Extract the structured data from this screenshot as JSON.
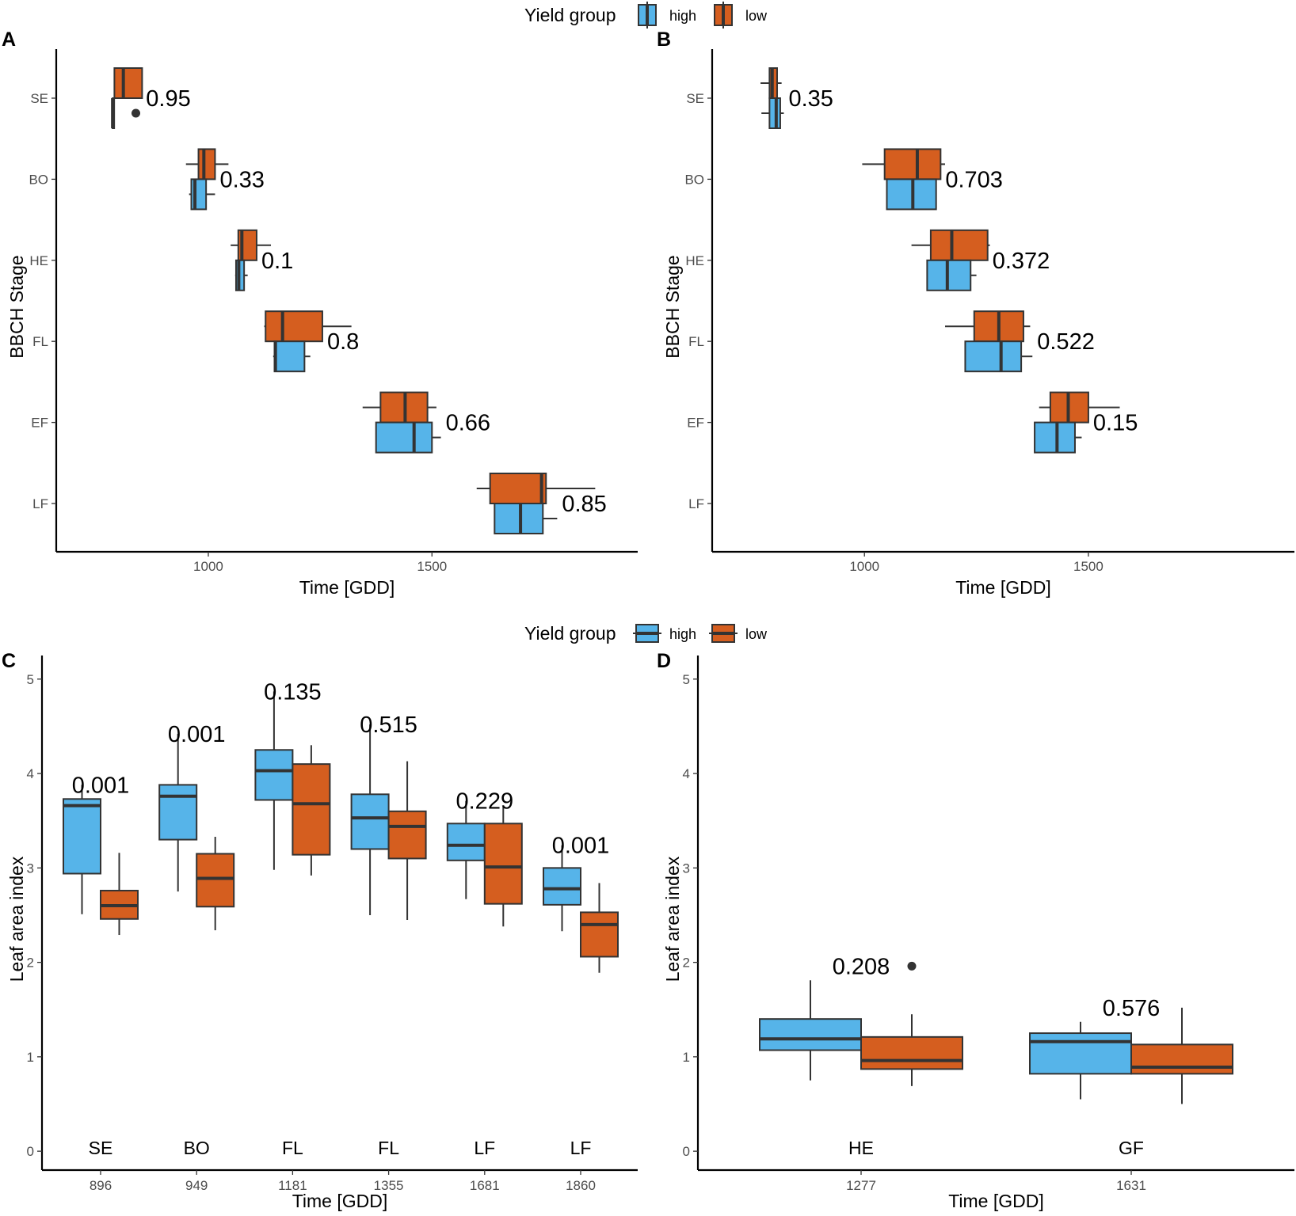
{
  "colors": {
    "high": "#56B4E9",
    "low": "#D55E1F",
    "outline": "#333333"
  },
  "legend": {
    "title": "Yield group",
    "items": [
      "high",
      "low"
    ]
  },
  "chart_data": [
    {
      "panel": "A",
      "type": "boxplot",
      "orientation": "horizontal",
      "xlabel": "Time [GDD]",
      "ylabel": "BBCH Stage",
      "xlim": [
        660,
        1960
      ],
      "xticks": [
        1000,
        1500
      ],
      "categories": [
        "SE",
        "BO",
        "HE",
        "FL",
        "EF",
        "LF"
      ],
      "pvalues": [
        "0.95",
        "0.33",
        "0.1",
        "0.8",
        "0.66",
        "0.85"
      ],
      "boxes": {
        "high": [
          {
            "min": 786,
            "q1": 786,
            "median": 786,
            "q3": 786,
            "max": 786,
            "outliers": [
              838
            ]
          },
          {
            "min": 957,
            "q1": 962,
            "median": 970,
            "q3": 995,
            "max": 1015
          },
          {
            "min": 1060,
            "q1": 1062,
            "median": 1068,
            "q3": 1080,
            "max": 1088
          },
          {
            "min": 1145,
            "q1": 1148,
            "median": 1150,
            "q3": 1215,
            "max": 1228
          },
          {
            "min": 1375,
            "q1": 1375,
            "median": 1460,
            "q3": 1500,
            "max": 1520
          },
          {
            "min": 1640,
            "q1": 1640,
            "median": 1698,
            "q3": 1748,
            "max": 1780
          }
        ],
        "low": [
          {
            "min": 790,
            "q1": 790,
            "median": 810,
            "q3": 852,
            "max": 852
          },
          {
            "min": 950,
            "q1": 978,
            "median": 990,
            "q3": 1015,
            "max": 1045
          },
          {
            "min": 1050,
            "q1": 1067,
            "median": 1075,
            "q3": 1108,
            "max": 1140
          },
          {
            "min": 1125,
            "q1": 1128,
            "median": 1166,
            "q3": 1255,
            "max": 1320
          },
          {
            "min": 1345,
            "q1": 1385,
            "median": 1440,
            "q3": 1490,
            "max": 1510
          },
          {
            "min": 1600,
            "q1": 1630,
            "median": 1745,
            "q3": 1755,
            "max": 1865
          }
        ]
      }
    },
    {
      "panel": "B",
      "type": "boxplot",
      "orientation": "horizontal",
      "xlabel": "Time [GDD]",
      "ylabel": "BBCH Stage",
      "xlim": [
        660,
        1960
      ],
      "xticks": [
        1000,
        1500
      ],
      "categories": [
        "SE",
        "BO",
        "HE",
        "FL",
        "EF",
        "LF"
      ],
      "pvalues": [
        "0.35",
        "0.703",
        "0.372",
        "0.522",
        "0.15",
        null
      ],
      "boxes": {
        "high": [
          {
            "min": 770,
            "q1": 788,
            "median": 803,
            "q3": 812,
            "max": 820
          },
          {
            "min": 1050,
            "q1": 1050,
            "median": 1108,
            "q3": 1160,
            "max": 1160
          },
          {
            "min": 1140,
            "q1": 1140,
            "median": 1185,
            "q3": 1237,
            "max": 1250
          },
          {
            "min": 1225,
            "q1": 1225,
            "median": 1305,
            "q3": 1350,
            "max": 1375
          },
          {
            "min": 1380,
            "q1": 1380,
            "median": 1430,
            "q3": 1470,
            "max": 1485
          },
          null
        ],
        "low": [
          {
            "min": 768,
            "q1": 788,
            "median": 794,
            "q3": 805,
            "max": 815
          },
          {
            "min": 995,
            "q1": 1045,
            "median": 1118,
            "q3": 1170,
            "max": 1180
          },
          {
            "min": 1105,
            "q1": 1148,
            "median": 1195,
            "q3": 1275,
            "max": 1280
          },
          {
            "min": 1180,
            "q1": 1245,
            "median": 1300,
            "q3": 1355,
            "max": 1370
          },
          {
            "min": 1390,
            "q1": 1415,
            "median": 1455,
            "q3": 1500,
            "max": 1570
          },
          null
        ]
      }
    },
    {
      "panel": "C",
      "type": "boxplot",
      "orientation": "vertical",
      "xlabel": "Time [GDD]",
      "ylabel": "Leaf area index",
      "ylim": [
        -0.2,
        5.25
      ],
      "yticks": [
        0,
        1,
        2,
        3,
        4,
        5
      ],
      "categories": [
        "896",
        "949",
        "1181",
        "1355",
        "1681",
        "1860"
      ],
      "stages": [
        "SE",
        "BO",
        "FL",
        "FL",
        "LF",
        "LF"
      ],
      "pvalues": [
        "0.001",
        "0.001",
        "0.135",
        "0.515",
        "0.229",
        "0.001"
      ],
      "boxes": {
        "high": [
          {
            "min": 2.51,
            "q1": 2.94,
            "median": 3.66,
            "q3": 3.73,
            "max": 3.88
          },
          {
            "min": 2.75,
            "q1": 3.3,
            "median": 3.76,
            "q3": 3.88,
            "max": 4.42
          },
          {
            "min": 2.98,
            "q1": 3.72,
            "median": 4.03,
            "q3": 4.25,
            "max": 4.87
          },
          {
            "min": 2.5,
            "q1": 3.2,
            "median": 3.53,
            "q3": 3.78,
            "max": 4.52
          },
          {
            "min": 2.67,
            "q1": 3.08,
            "median": 3.24,
            "q3": 3.47,
            "max": 3.71
          },
          {
            "min": 2.33,
            "q1": 2.61,
            "median": 2.78,
            "q3": 3.0,
            "max": 3.24
          }
        ],
        "low": [
          {
            "min": 2.29,
            "q1": 2.46,
            "median": 2.6,
            "q3": 2.76,
            "max": 3.16
          },
          {
            "min": 2.34,
            "q1": 2.59,
            "median": 2.89,
            "q3": 3.15,
            "max": 3.33
          },
          {
            "min": 2.92,
            "q1": 3.14,
            "median": 3.68,
            "q3": 4.1,
            "max": 4.3
          },
          {
            "min": 2.45,
            "q1": 3.1,
            "median": 3.44,
            "q3": 3.6,
            "max": 4.13
          },
          {
            "min": 2.38,
            "q1": 2.62,
            "median": 3.01,
            "q3": 3.47,
            "max": 3.65
          },
          {
            "min": 1.89,
            "q1": 2.06,
            "median": 2.4,
            "q3": 2.53,
            "max": 2.84
          }
        ]
      }
    },
    {
      "panel": "D",
      "type": "boxplot",
      "orientation": "vertical",
      "xlabel": "Time [GDD]",
      "ylabel": "Leaf area index",
      "ylim": [
        -0.2,
        5.25
      ],
      "yticks": [
        0,
        1,
        2,
        3,
        4,
        5
      ],
      "categories": [
        "1277",
        "1631"
      ],
      "stages": [
        "HE",
        "GF"
      ],
      "pvalues": [
        "0.208",
        "0.576"
      ],
      "boxes": {
        "high": [
          {
            "min": 0.75,
            "q1": 1.07,
            "median": 1.19,
            "q3": 1.4,
            "max": 1.81
          },
          {
            "min": 0.55,
            "q1": 0.82,
            "median": 1.16,
            "q3": 1.25,
            "max": 1.37
          }
        ],
        "low": [
          {
            "min": 0.69,
            "q1": 0.87,
            "median": 0.96,
            "q3": 1.21,
            "max": 1.45,
            "outliers": [
              1.96
            ]
          },
          {
            "min": 0.5,
            "q1": 0.82,
            "median": 0.89,
            "q3": 1.13,
            "max": 1.52
          }
        ]
      }
    }
  ]
}
